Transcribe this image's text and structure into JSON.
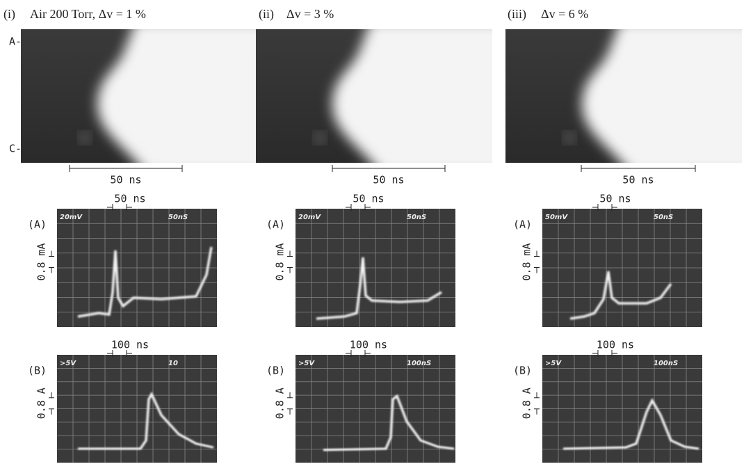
{
  "electrodes": [
    "A-",
    "C-"
  ],
  "panels": [
    {
      "label": "(i)",
      "condition": "Air 200 Torr, Δv = 1 %",
      "streak_scale": "50 ns",
      "scope_a": {
        "label": "(A)",
        "volts": "20mV",
        "time": "50nS",
        "time_scale": "50 ns",
        "current_scale": "0.8 mA"
      },
      "scope_b": {
        "label": "(B)",
        "volts": ">5V",
        "time": "10",
        "time_scale": "100 ns",
        "current_scale": "0.8 A"
      }
    },
    {
      "label": "(ii)",
      "condition": "Δv = 3 %",
      "streak_scale": "50 ns",
      "scope_a": {
        "label": "(A)",
        "volts": "20mV",
        "time": "50nS",
        "time_scale": "50 ns",
        "current_scale": "0.8 mA"
      },
      "scope_b": {
        "label": "(B)",
        "volts": ">5V",
        "time": "100nS",
        "time_scale": "100 ns",
        "current_scale": "0.8 A"
      }
    },
    {
      "label": "(iii)",
      "condition": "Δv = 6 %",
      "streak_scale": "50 ns",
      "scope_a": {
        "label": "(A)",
        "volts": "50mV",
        "time": "50nS",
        "time_scale": "50 ns",
        "current_scale": "0.8 mA"
      },
      "scope_b": {
        "label": "(B)",
        "volts": ">5V",
        "time": "100nS",
        "time_scale": "100 ns",
        "current_scale": "0.8 A"
      }
    }
  ]
}
